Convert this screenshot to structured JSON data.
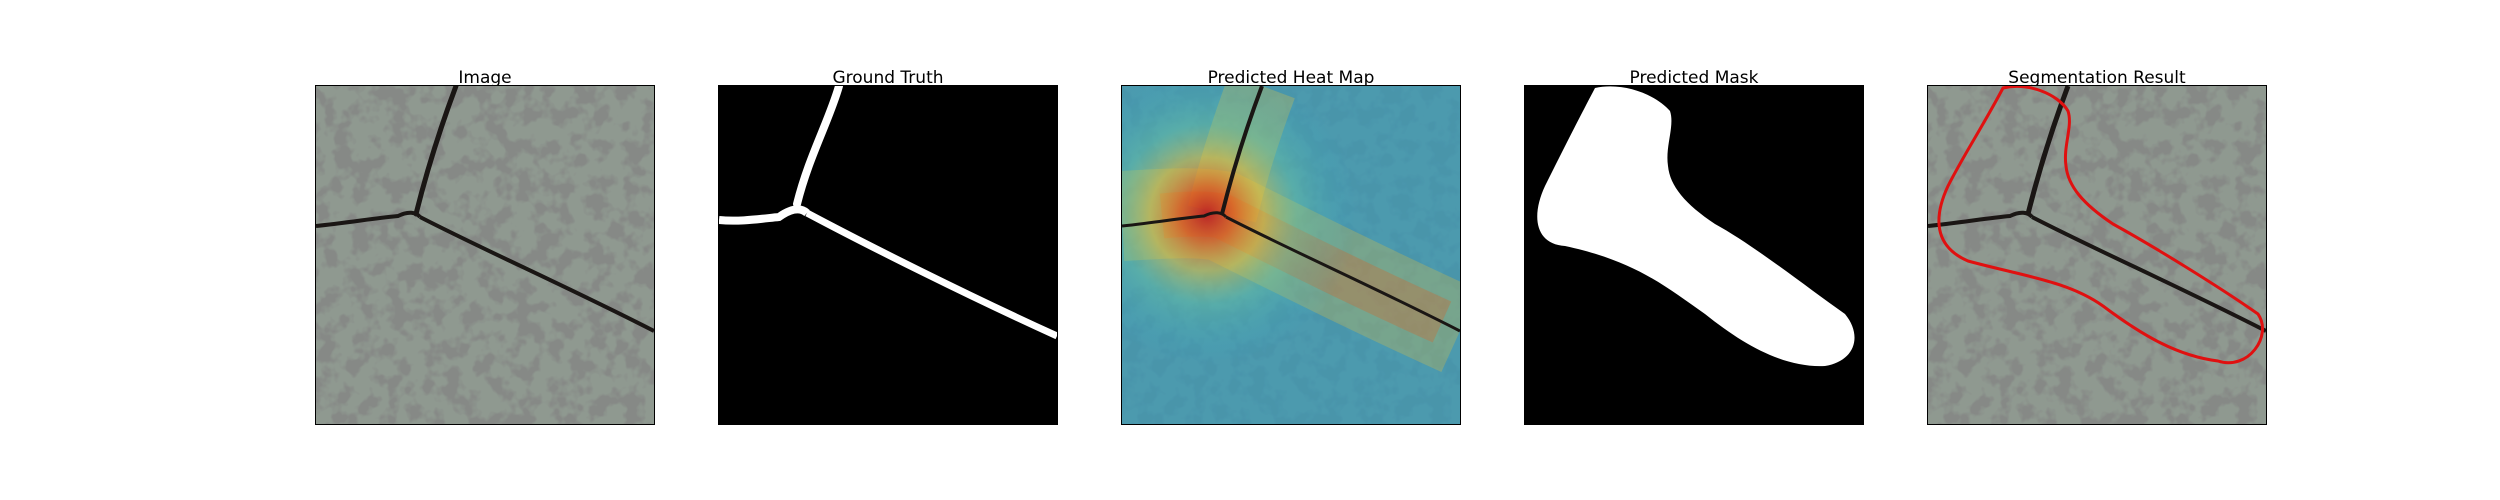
{
  "panels": [
    {
      "id": "image",
      "title": "Image"
    },
    {
      "id": "ground-truth",
      "title": "Ground Truth"
    },
    {
      "id": "heatmap",
      "title": "Predicted Heat Map"
    },
    {
      "id": "mask",
      "title": "Predicted Mask"
    },
    {
      "id": "segmentation",
      "title": "Segmentation Result"
    }
  ],
  "colors": {
    "stone_light": "#8f9990",
    "stone_dark": "#3a3c3a",
    "crack": "#1a1614",
    "mask_white": "#ffffff",
    "mask_black": "#000000",
    "contour": "#e01010"
  }
}
